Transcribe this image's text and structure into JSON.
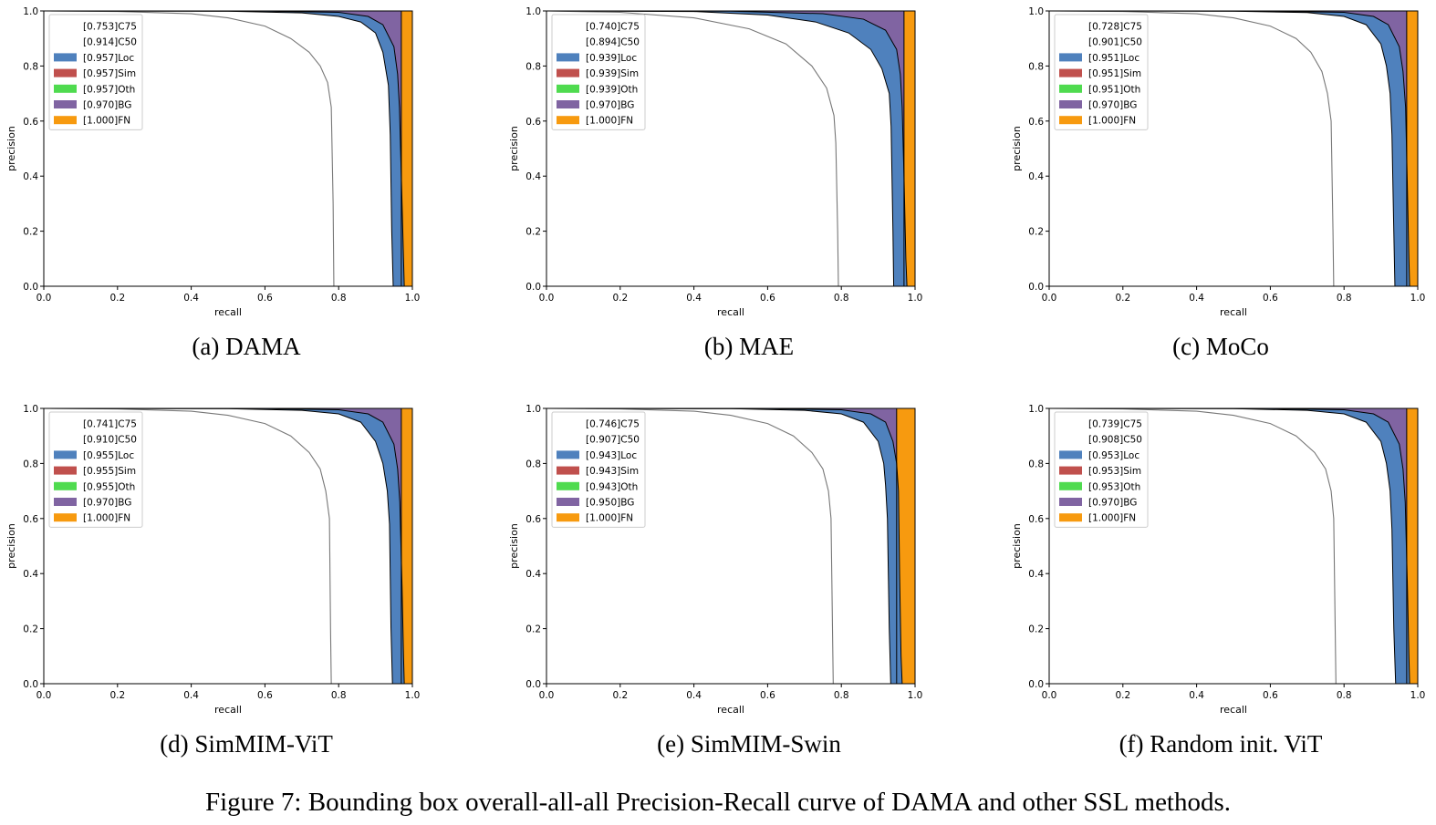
{
  "figure": {
    "caption": "Figure 7: Bounding box overall-all-all Precision-Recall curve of DAMA and other SSL methods."
  },
  "colors": {
    "Loc": "#4f81bd",
    "Sim": "#c0504d",
    "Oth": "#4fdb4f",
    "BG": "#8064a2",
    "FN": "#f79a0f",
    "curve": "#000000"
  },
  "chart_data": [
    {
      "type": "area",
      "subcaption": "(a) DAMA",
      "xlabel": "recall",
      "ylabel": "precision",
      "xlim": [
        0,
        1
      ],
      "ylim": [
        0,
        1
      ],
      "xticks": [
        "0.0",
        "0.2",
        "0.4",
        "0.6",
        "0.8",
        "1.0"
      ],
      "yticks": [
        "0.0",
        "0.2",
        "0.4",
        "0.6",
        "0.8",
        "1.0"
      ],
      "legend_position": "top-left",
      "legend": [
        {
          "label": "[0.753]C75",
          "key": "C75"
        },
        {
          "label": "[0.914]C50",
          "key": "C50"
        },
        {
          "label": "[0.957]Loc",
          "key": "Loc"
        },
        {
          "label": "[0.957]Sim",
          "key": "Sim"
        },
        {
          "label": "[0.957]Oth",
          "key": "Oth"
        },
        {
          "label": "[0.970]BG",
          "key": "BG"
        },
        {
          "label": "[1.000]FN",
          "key": "FN"
        }
      ],
      "curves": {
        "C75": {
          "x": [
            0.0,
            0.2,
            0.4,
            0.5,
            0.6,
            0.67,
            0.72,
            0.75,
            0.77,
            0.78,
            0.785,
            0.787
          ],
          "y": [
            1.0,
            0.998,
            0.99,
            0.975,
            0.945,
            0.9,
            0.85,
            0.8,
            0.74,
            0.65,
            0.3,
            0.0
          ]
        },
        "C50": {
          "x": [
            0.0,
            0.5,
            0.7,
            0.8,
            0.86,
            0.9,
            0.92,
            0.935,
            0.94,
            0.944,
            0.948
          ],
          "y": [
            1.0,
            0.999,
            0.993,
            0.98,
            0.96,
            0.92,
            0.85,
            0.73,
            0.55,
            0.2,
            0.0
          ]
        },
        "Loc": {
          "x": [
            0.0,
            0.6,
            0.8,
            0.88,
            0.92,
            0.95,
            0.96,
            0.965,
            0.972,
            0.976,
            0.978
          ],
          "y": [
            1.0,
            0.999,
            0.995,
            0.98,
            0.95,
            0.87,
            0.77,
            0.65,
            0.3,
            0.1,
            0.0
          ]
        },
        "BG": {
          "x": [
            0.97,
            0.97
          ],
          "y": [
            1.0,
            0.0
          ]
        },
        "FN": {
          "x": [
            1.0,
            1.0
          ],
          "y": [
            1.0,
            0.0
          ]
        }
      }
    },
    {
      "type": "area",
      "subcaption": "(b) MAE",
      "xlabel": "recall",
      "ylabel": "precision",
      "xlim": [
        0,
        1
      ],
      "ylim": [
        0,
        1
      ],
      "xticks": [
        "0.0",
        "0.2",
        "0.4",
        "0.6",
        "0.8",
        "1.0"
      ],
      "yticks": [
        "0.0",
        "0.2",
        "0.4",
        "0.6",
        "0.8",
        "1.0"
      ],
      "legend_position": "top-left",
      "legend": [
        {
          "label": "[0.740]C75",
          "key": "C75"
        },
        {
          "label": "[0.894]C50",
          "key": "C50"
        },
        {
          "label": "[0.939]Loc",
          "key": "Loc"
        },
        {
          "label": "[0.939]Sim",
          "key": "Sim"
        },
        {
          "label": "[0.939]Oth",
          "key": "Oth"
        },
        {
          "label": "[0.970]BG",
          "key": "BG"
        },
        {
          "label": "[1.000]FN",
          "key": "FN"
        }
      ],
      "curves": {
        "C75": {
          "x": [
            0.0,
            0.2,
            0.4,
            0.55,
            0.65,
            0.72,
            0.76,
            0.78,
            0.785,
            0.79,
            0.792
          ],
          "y": [
            1.0,
            0.995,
            0.975,
            0.935,
            0.88,
            0.8,
            0.72,
            0.62,
            0.52,
            0.2,
            0.0
          ]
        },
        "C50": {
          "x": [
            0.0,
            0.4,
            0.6,
            0.73,
            0.82,
            0.88,
            0.91,
            0.93,
            0.935,
            0.94,
            0.942
          ],
          "y": [
            1.0,
            0.998,
            0.985,
            0.96,
            0.92,
            0.86,
            0.79,
            0.7,
            0.58,
            0.2,
            0.0
          ]
        },
        "Loc": {
          "x": [
            0.0,
            0.5,
            0.75,
            0.86,
            0.92,
            0.95,
            0.96,
            0.965,
            0.97,
            0.975,
            0.978
          ],
          "y": [
            1.0,
            0.999,
            0.99,
            0.97,
            0.93,
            0.86,
            0.77,
            0.65,
            0.4,
            0.1,
            0.0
          ]
        },
        "BG": {
          "x": [
            0.97,
            0.97
          ],
          "y": [
            1.0,
            0.0
          ]
        },
        "FN": {
          "x": [
            1.0,
            1.0
          ],
          "y": [
            1.0,
            0.0
          ]
        }
      }
    },
    {
      "type": "area",
      "subcaption": "(c) MoCo",
      "xlabel": "recall",
      "ylabel": "precision",
      "xlim": [
        0,
        1
      ],
      "ylim": [
        0,
        1
      ],
      "xticks": [
        "0.0",
        "0.2",
        "0.4",
        "0.6",
        "0.8",
        "1.0"
      ],
      "yticks": [
        "0.0",
        "0.2",
        "0.4",
        "0.6",
        "0.8",
        "1.0"
      ],
      "legend_position": "top-left",
      "legend": [
        {
          "label": "[0.728]C75",
          "key": "C75"
        },
        {
          "label": "[0.901]C50",
          "key": "C50"
        },
        {
          "label": "[0.951]Loc",
          "key": "Loc"
        },
        {
          "label": "[0.951]Sim",
          "key": "Sim"
        },
        {
          "label": "[0.951]Oth",
          "key": "Oth"
        },
        {
          "label": "[0.970]BG",
          "key": "BG"
        },
        {
          "label": "[1.000]FN",
          "key": "FN"
        }
      ],
      "curves": {
        "C75": {
          "x": [
            0.0,
            0.2,
            0.4,
            0.5,
            0.6,
            0.67,
            0.71,
            0.74,
            0.755,
            0.765,
            0.77,
            0.772
          ],
          "y": [
            1.0,
            0.998,
            0.99,
            0.975,
            0.945,
            0.9,
            0.85,
            0.78,
            0.7,
            0.6,
            0.2,
            0.0
          ]
        },
        "C50": {
          "x": [
            0.0,
            0.5,
            0.7,
            0.8,
            0.86,
            0.9,
            0.915,
            0.925,
            0.93,
            0.935,
            0.938
          ],
          "y": [
            1.0,
            0.999,
            0.994,
            0.98,
            0.95,
            0.88,
            0.8,
            0.7,
            0.55,
            0.2,
            0.0
          ]
        },
        "Loc": {
          "x": [
            0.0,
            0.6,
            0.8,
            0.88,
            0.92,
            0.95,
            0.96,
            0.967,
            0.972,
            0.976,
            0.978
          ],
          "y": [
            1.0,
            0.999,
            0.995,
            0.98,
            0.95,
            0.87,
            0.78,
            0.65,
            0.35,
            0.1,
            0.0
          ]
        },
        "BG": {
          "x": [
            0.97,
            0.97
          ],
          "y": [
            1.0,
            0.0
          ]
        },
        "FN": {
          "x": [
            1.0,
            1.0
          ],
          "y": [
            1.0,
            0.0
          ]
        }
      }
    },
    {
      "type": "area",
      "subcaption": "(d) SimMIM-ViT",
      "xlabel": "recall",
      "ylabel": "precision",
      "xlim": [
        0,
        1
      ],
      "ylim": [
        0,
        1
      ],
      "xticks": [
        "0.0",
        "0.2",
        "0.4",
        "0.6",
        "0.8",
        "1.0"
      ],
      "yticks": [
        "0.0",
        "0.2",
        "0.4",
        "0.6",
        "0.8",
        "1.0"
      ],
      "legend_position": "top-left",
      "legend": [
        {
          "label": "[0.741]C75",
          "key": "C75"
        },
        {
          "label": "[0.910]C50",
          "key": "C50"
        },
        {
          "label": "[0.955]Loc",
          "key": "Loc"
        },
        {
          "label": "[0.955]Sim",
          "key": "Sim"
        },
        {
          "label": "[0.955]Oth",
          "key": "Oth"
        },
        {
          "label": "[0.970]BG",
          "key": "BG"
        },
        {
          "label": "[1.000]FN",
          "key": "FN"
        }
      ],
      "curves": {
        "C75": {
          "x": [
            0.0,
            0.2,
            0.4,
            0.5,
            0.6,
            0.67,
            0.72,
            0.75,
            0.765,
            0.775,
            0.778,
            0.78
          ],
          "y": [
            1.0,
            0.998,
            0.99,
            0.975,
            0.945,
            0.9,
            0.84,
            0.78,
            0.7,
            0.6,
            0.2,
            0.0
          ]
        },
        "C50": {
          "x": [
            0.0,
            0.5,
            0.7,
            0.8,
            0.86,
            0.9,
            0.92,
            0.932,
            0.938,
            0.942,
            0.946
          ],
          "y": [
            1.0,
            0.999,
            0.993,
            0.98,
            0.95,
            0.88,
            0.8,
            0.7,
            0.58,
            0.2,
            0.0
          ]
        },
        "Loc": {
          "x": [
            0.0,
            0.6,
            0.8,
            0.88,
            0.92,
            0.95,
            0.96,
            0.966,
            0.972,
            0.976,
            0.978
          ],
          "y": [
            1.0,
            0.999,
            0.995,
            0.98,
            0.95,
            0.87,
            0.78,
            0.66,
            0.35,
            0.1,
            0.0
          ]
        },
        "BG": {
          "x": [
            0.97,
            0.97
          ],
          "y": [
            1.0,
            0.0
          ]
        },
        "FN": {
          "x": [
            1.0,
            1.0
          ],
          "y": [
            1.0,
            0.0
          ]
        }
      }
    },
    {
      "type": "area",
      "subcaption": "(e) SimMIM-Swin",
      "xlabel": "recall",
      "ylabel": "precision",
      "xlim": [
        0,
        1
      ],
      "ylim": [
        0,
        1
      ],
      "xticks": [
        "0.0",
        "0.2",
        "0.4",
        "0.6",
        "0.8",
        "1.0"
      ],
      "yticks": [
        "0.0",
        "0.2",
        "0.4",
        "0.6",
        "0.8",
        "1.0"
      ],
      "legend_position": "top-left",
      "legend": [
        {
          "label": "[0.746]C75",
          "key": "C75"
        },
        {
          "label": "[0.907]C50",
          "key": "C50"
        },
        {
          "label": "[0.943]Loc",
          "key": "Loc"
        },
        {
          "label": "[0.943]Sim",
          "key": "Sim"
        },
        {
          "label": "[0.943]Oth",
          "key": "Oth"
        },
        {
          "label": "[0.950]BG",
          "key": "BG"
        },
        {
          "label": "[1.000]FN",
          "key": "FN"
        }
      ],
      "curves": {
        "C75": {
          "x": [
            0.0,
            0.2,
            0.4,
            0.5,
            0.6,
            0.67,
            0.72,
            0.75,
            0.765,
            0.772,
            0.776,
            0.778
          ],
          "y": [
            1.0,
            0.998,
            0.99,
            0.975,
            0.945,
            0.9,
            0.84,
            0.78,
            0.7,
            0.6,
            0.2,
            0.0
          ]
        },
        "C50": {
          "x": [
            0.0,
            0.5,
            0.7,
            0.8,
            0.86,
            0.9,
            0.915,
            0.92,
            0.925,
            0.93,
            0.934
          ],
          "y": [
            1.0,
            0.999,
            0.993,
            0.98,
            0.95,
            0.88,
            0.8,
            0.72,
            0.6,
            0.2,
            0.0
          ]
        },
        "Loc": {
          "x": [
            0.0,
            0.6,
            0.8,
            0.88,
            0.92,
            0.94,
            0.95,
            0.955,
            0.958,
            0.962,
            0.965
          ],
          "y": [
            1.0,
            0.999,
            0.995,
            0.98,
            0.95,
            0.88,
            0.8,
            0.7,
            0.4,
            0.1,
            0.0
          ]
        },
        "BG": {
          "x": [
            0.95,
            0.95
          ],
          "y": [
            1.0,
            0.0
          ]
        },
        "FN": {
          "x": [
            1.0,
            1.0
          ],
          "y": [
            1.0,
            0.0
          ]
        }
      }
    },
    {
      "type": "area",
      "subcaption": "(f) Random init. ViT",
      "xlabel": "recall",
      "ylabel": "precision",
      "xlim": [
        0,
        1
      ],
      "ylim": [
        0,
        1
      ],
      "xticks": [
        "0.0",
        "0.2",
        "0.4",
        "0.6",
        "0.8",
        "1.0"
      ],
      "yticks": [
        "0.0",
        "0.2",
        "0.4",
        "0.6",
        "0.8",
        "1.0"
      ],
      "legend_position": "top-left",
      "legend": [
        {
          "label": "[0.739]C75",
          "key": "C75"
        },
        {
          "label": "[0.908]C50",
          "key": "C50"
        },
        {
          "label": "[0.953]Loc",
          "key": "Loc"
        },
        {
          "label": "[0.953]Sim",
          "key": "Sim"
        },
        {
          "label": "[0.953]Oth",
          "key": "Oth"
        },
        {
          "label": "[0.970]BG",
          "key": "BG"
        },
        {
          "label": "[1.000]FN",
          "key": "FN"
        }
      ],
      "curves": {
        "C75": {
          "x": [
            0.0,
            0.2,
            0.4,
            0.5,
            0.6,
            0.67,
            0.72,
            0.75,
            0.765,
            0.772,
            0.776,
            0.778
          ],
          "y": [
            1.0,
            0.998,
            0.99,
            0.975,
            0.945,
            0.9,
            0.84,
            0.78,
            0.7,
            0.6,
            0.2,
            0.0
          ]
        },
        "C50": {
          "x": [
            0.0,
            0.5,
            0.7,
            0.8,
            0.86,
            0.9,
            0.915,
            0.925,
            0.93,
            0.935,
            0.94
          ],
          "y": [
            1.0,
            0.999,
            0.993,
            0.98,
            0.95,
            0.88,
            0.8,
            0.7,
            0.56,
            0.2,
            0.0
          ]
        },
        "Loc": {
          "x": [
            0.0,
            0.6,
            0.8,
            0.88,
            0.92,
            0.95,
            0.96,
            0.966,
            0.972,
            0.976,
            0.978
          ],
          "y": [
            1.0,
            0.999,
            0.995,
            0.98,
            0.95,
            0.87,
            0.78,
            0.66,
            0.35,
            0.1,
            0.0
          ]
        },
        "BG": {
          "x": [
            0.97,
            0.97
          ],
          "y": [
            1.0,
            0.0
          ]
        },
        "FN": {
          "x": [
            1.0,
            1.0
          ],
          "y": [
            1.0,
            0.0
          ]
        }
      }
    }
  ]
}
